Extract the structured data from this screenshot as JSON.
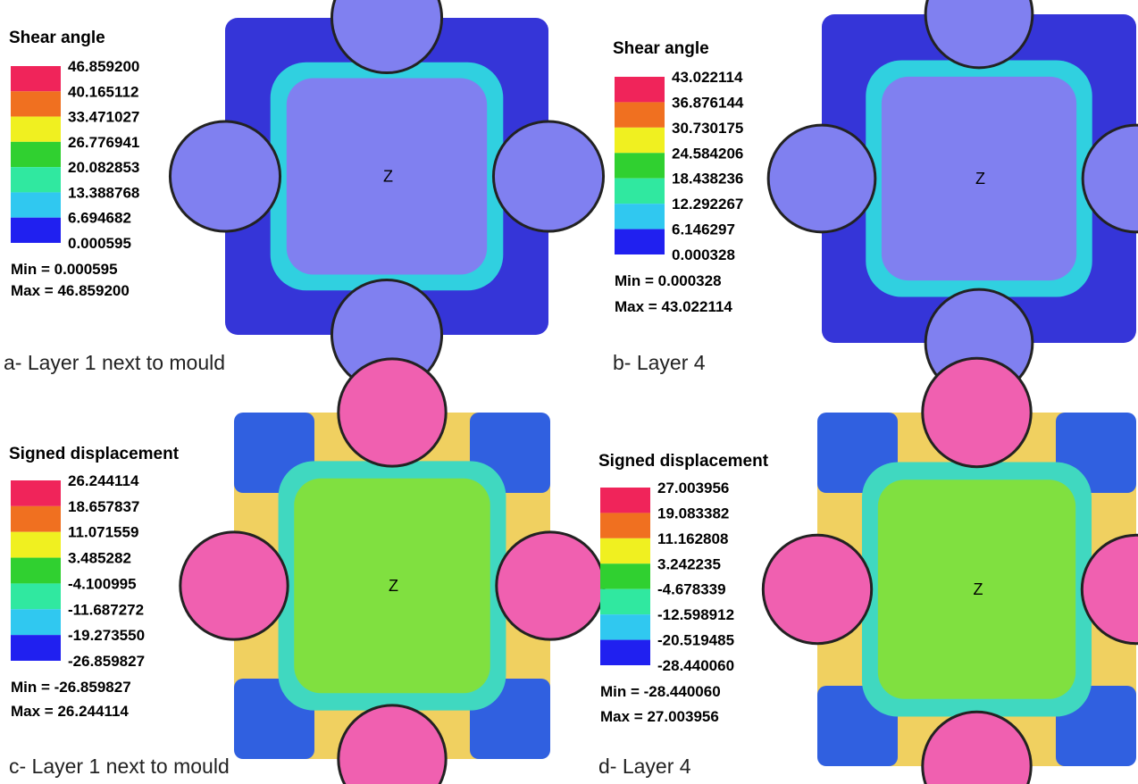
{
  "panels": [
    {
      "legend_title": "Shear angle",
      "levels": [
        "46.859200",
        "40.165112",
        "33.471027",
        "26.776941",
        "20.082853",
        "13.388768",
        "6.694682",
        "0.000595"
      ],
      "min": "Min = 0.000595",
      "max": "Max = 46.859200",
      "marker": "Z",
      "caption": "a- Layer 1 next to mould"
    },
    {
      "legend_title": "Shear angle",
      "levels": [
        "43.022114",
        "36.876144",
        "30.730175",
        "24.584206",
        "18.438236",
        "12.292267",
        "6.146297",
        "0.000328"
      ],
      "min": "Min = 0.000328",
      "max": "Max = 43.022114",
      "marker": "Z",
      "caption": "b- Layer 4"
    },
    {
      "legend_title": "Signed displacement",
      "levels": [
        "26.244114",
        "18.657837",
        "11.071559",
        "3.485282",
        "-4.100995",
        "-11.687272",
        "-19.273550",
        "-26.859827"
      ],
      "min": "Min = -26.859827",
      "max": "Max = 26.244114",
      "marker": "Z",
      "caption": "c- Layer 1 next to mould"
    },
    {
      "legend_title": "Signed displacement",
      "levels": [
        "27.003956",
        "19.083382",
        "11.162808",
        "3.242235",
        "-4.678339",
        "-12.598912",
        "-20.519485",
        "-28.440060"
      ],
      "min": "Min = -28.440060",
      "max": "Max = 27.003956",
      "marker": "Z",
      "caption": "d- Layer 4"
    }
  ]
}
